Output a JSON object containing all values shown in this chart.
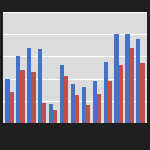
{
  "blue_values": [
    0.4,
    0.6,
    0.68,
    0.67,
    0.17,
    0.52,
    0.35,
    0.32,
    0.38,
    0.55,
    0.8,
    0.8,
    0.76
  ],
  "red_values": [
    0.28,
    0.48,
    0.46,
    0.18,
    0.12,
    0.42,
    0.25,
    0.16,
    0.26,
    0.38,
    0.52,
    0.68,
    0.54
  ],
  "blue_color": "#4472C4",
  "red_color": "#C0504D",
  "bg_color": "#1F1F1F",
  "plot_bg_color": "#DCDCDC",
  "grid_color": "#FFFFFF",
  "bar_width": 0.38,
  "ylim": [
    0,
    1.0
  ],
  "n_gridlines": 5,
  "figsize": [
    1.5,
    1.5
  ],
  "dpi": 100
}
